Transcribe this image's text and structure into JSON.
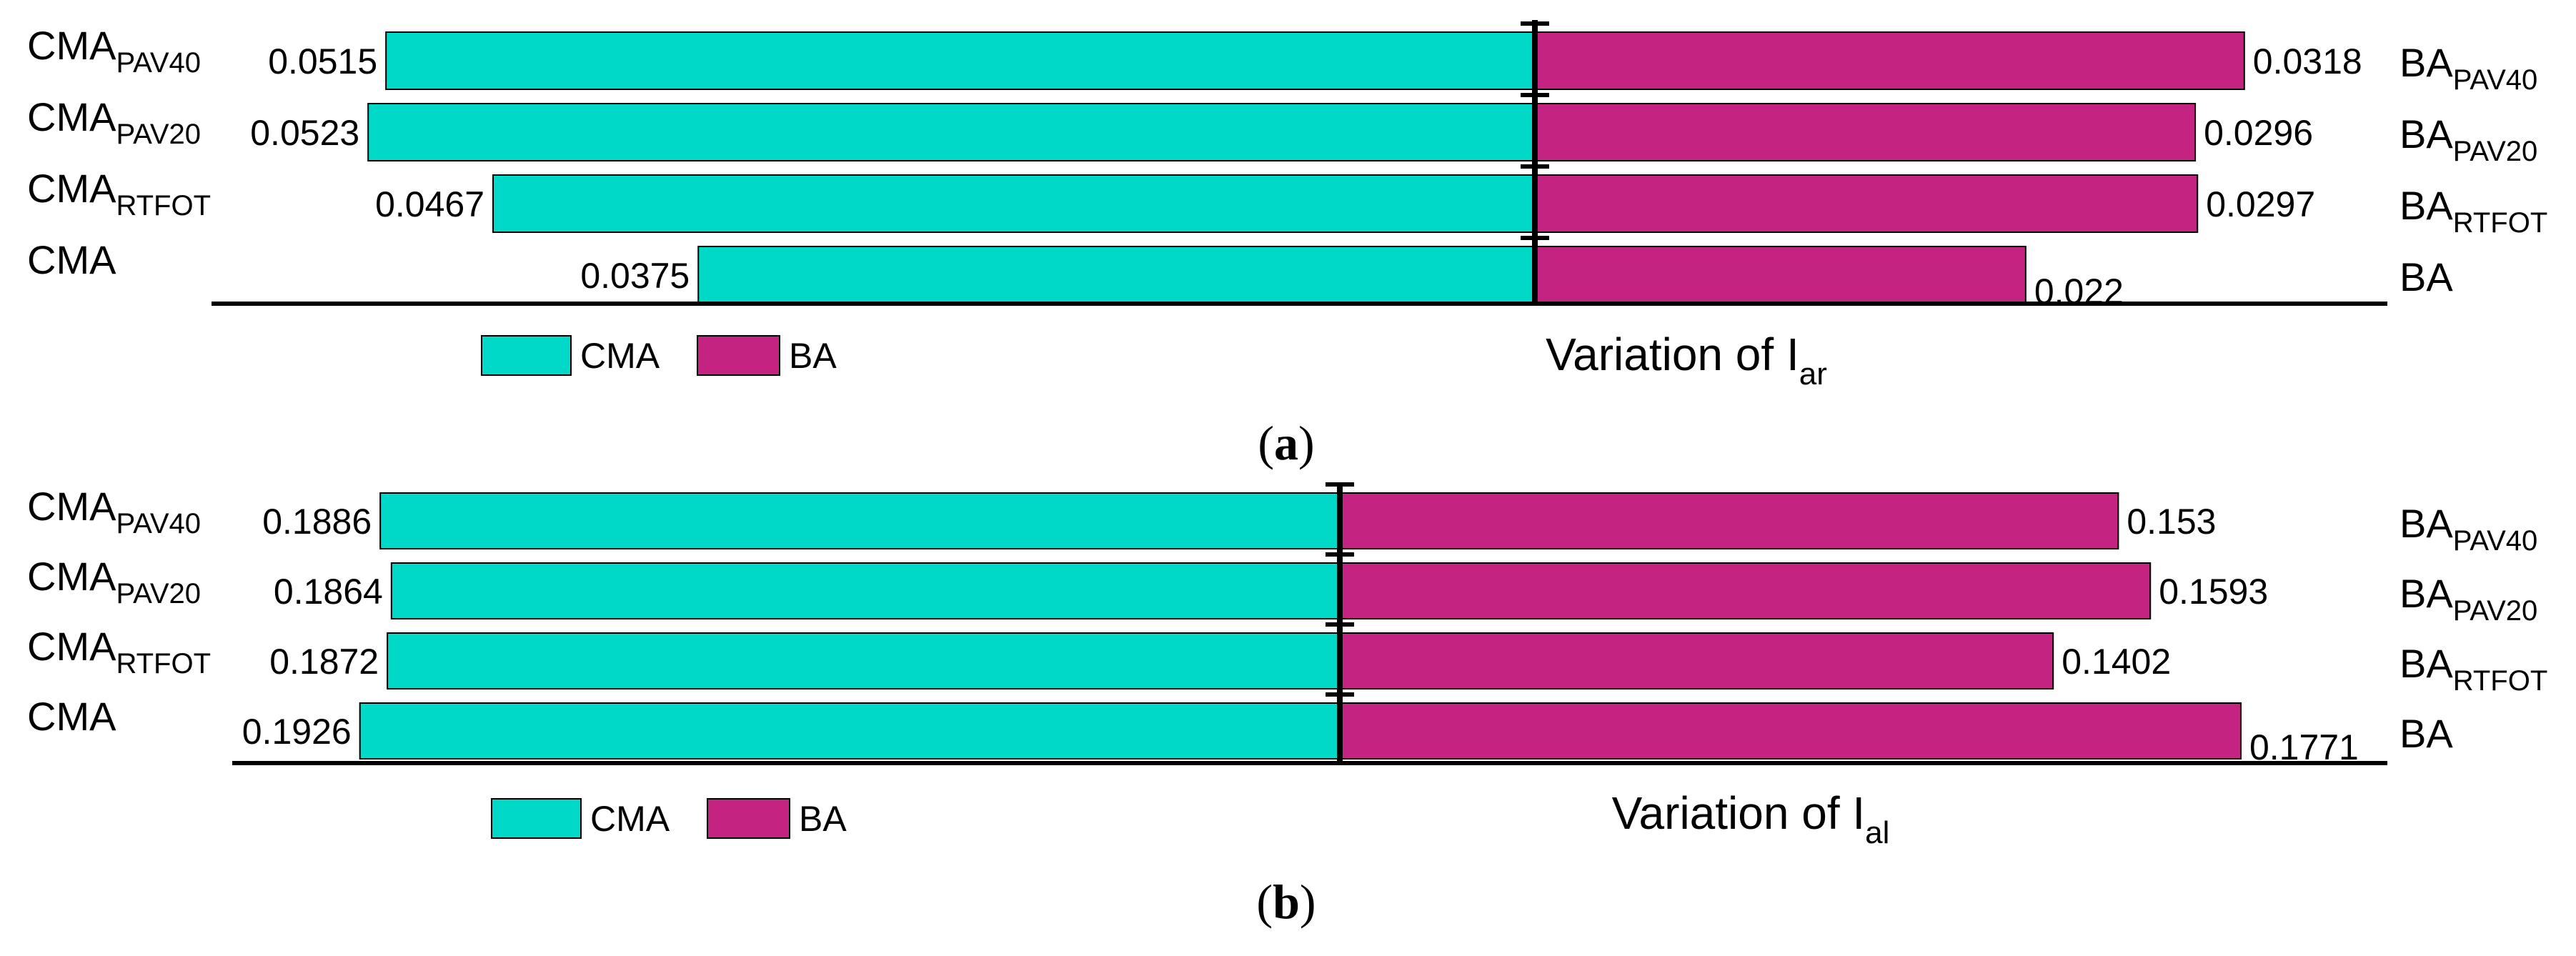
{
  "colors": {
    "cma": "#00d9c8",
    "ba": "#c52381",
    "axis": "#000000"
  },
  "chart_data": [
    {
      "panel": "a",
      "type": "bar",
      "orientation": "horizontal-diverging",
      "caption": {
        "open": "(",
        "letter": "a",
        "close": ")"
      },
      "title": {
        "prefix": "Variation of I",
        "subscript": "ar"
      },
      "legend": [
        "CMA",
        "BA"
      ],
      "legend_position": "bottom-left",
      "rows": [
        {
          "left_label": {
            "base": "CMA",
            "sub": "PAV40"
          },
          "right_label": {
            "base": "BA",
            "sub": "PAV40"
          },
          "cma": 0.0515,
          "ba": 0.0318,
          "cma_text": "0.0515",
          "ba_text": "0.0318"
        },
        {
          "left_label": {
            "base": "CMA",
            "sub": "PAV20"
          },
          "right_label": {
            "base": "BA",
            "sub": "PAV20"
          },
          "cma": 0.0523,
          "ba": 0.0296,
          "cma_text": "0.0523",
          "ba_text": "0.0296"
        },
        {
          "left_label": {
            "base": "CMA",
            "sub": "RTFOT"
          },
          "right_label": {
            "base": "BA",
            "sub": "RTFOT"
          },
          "cma": 0.0467,
          "ba": 0.0297,
          "cma_text": "0.0467",
          "ba_text": "0.0297"
        },
        {
          "left_label": {
            "base": "CMA",
            "sub": ""
          },
          "right_label": {
            "base": "BA",
            "sub": ""
          },
          "cma": 0.0375,
          "ba": 0.022,
          "cma_text": "0.0375",
          "ba_text": "0.022"
        }
      ]
    },
    {
      "panel": "b",
      "type": "bar",
      "orientation": "horizontal-diverging",
      "caption": {
        "open": "(",
        "letter": "b",
        "close": ")"
      },
      "title": {
        "prefix": "Variation of I",
        "subscript": "al"
      },
      "legend": [
        "CMA",
        "BA"
      ],
      "legend_position": "bottom-left",
      "rows": [
        {
          "left_label": {
            "base": "CMA",
            "sub": "PAV40"
          },
          "right_label": {
            "base": "BA",
            "sub": "PAV40"
          },
          "cma": 0.1886,
          "ba": 0.153,
          "cma_text": "0.1886",
          "ba_text": "0.153"
        },
        {
          "left_label": {
            "base": "CMA",
            "sub": "PAV20"
          },
          "right_label": {
            "base": "BA",
            "sub": "PAV20"
          },
          "cma": 0.1864,
          "ba": 0.1593,
          "cma_text": "0.1864",
          "ba_text": "0.1593"
        },
        {
          "left_label": {
            "base": "CMA",
            "sub": "RTFOT"
          },
          "right_label": {
            "base": "BA",
            "sub": "RTFOT"
          },
          "cma": 0.1872,
          "ba": 0.1402,
          "cma_text": "0.1872",
          "ba_text": "0.1402"
        },
        {
          "left_label": {
            "base": "CMA",
            "sub": ""
          },
          "right_label": {
            "base": "BA",
            "sub": ""
          },
          "cma": 0.1926,
          "ba": 0.1771,
          "cma_text": "0.1926",
          "ba_text": "0.1771"
        }
      ]
    }
  ]
}
